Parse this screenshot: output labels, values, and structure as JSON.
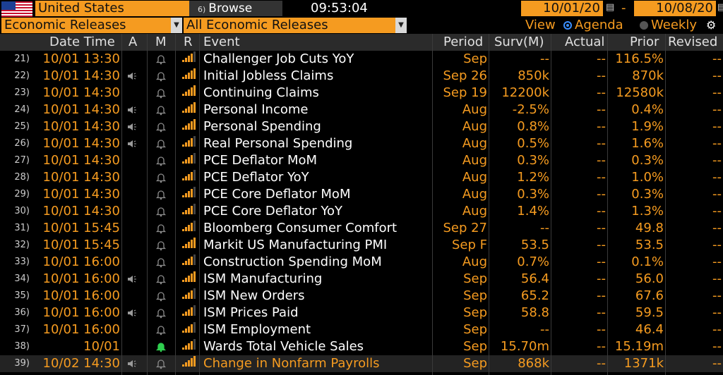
{
  "header": {
    "country": "United States",
    "browse_number": "6)",
    "browse_label": "Browse",
    "time": "09:53:04",
    "start_date": "10/01/20",
    "end_date": "10/08/20",
    "date_separator": "-"
  },
  "filters": {
    "category": "Economic Releases",
    "subcategory": "All Economic Releases",
    "view_label": "View",
    "view_options": [
      "Agenda",
      "Weekly"
    ],
    "selected_view": "Agenda"
  },
  "columns": {
    "date_time": "Date Time",
    "a": "A",
    "m": "M",
    "r": "R",
    "event": "Event",
    "period": "Period",
    "survey": "Surv(M)",
    "actual": "Actual",
    "prior": "Prior",
    "revised": "Revised"
  },
  "rows": [
    {
      "idx": "21)",
      "dt": "10/01 13:30",
      "audio": false,
      "bell": "gray",
      "bars": 4,
      "event": "Challenger Job Cuts YoY",
      "period": "Sep",
      "survey": "--",
      "actual": "--",
      "prior": "116.5%",
      "revised": "--"
    },
    {
      "idx": "22)",
      "dt": "10/01 14:30",
      "audio": true,
      "bell": "gray",
      "bars": 5,
      "event": "Initial Jobless Claims",
      "period": "Sep 26",
      "survey": "850k",
      "actual": "--",
      "prior": "870k",
      "revised": "--"
    },
    {
      "idx": "23)",
      "dt": "10/01 14:30",
      "audio": false,
      "bell": "gray",
      "bars": 5,
      "event": "Continuing Claims",
      "period": "Sep 19",
      "survey": "12200k",
      "actual": "--",
      "prior": "12580k",
      "revised": "--"
    },
    {
      "idx": "24)",
      "dt": "10/01 14:30",
      "audio": true,
      "bell": "gray",
      "bars": 5,
      "event": "Personal Income",
      "period": "Aug",
      "survey": "-2.5%",
      "actual": "--",
      "prior": "0.4%",
      "revised": "--"
    },
    {
      "idx": "25)",
      "dt": "10/01 14:30",
      "audio": true,
      "bell": "gray",
      "bars": 5,
      "event": "Personal Spending",
      "period": "Aug",
      "survey": "0.8%",
      "actual": "--",
      "prior": "1.9%",
      "revised": "--"
    },
    {
      "idx": "26)",
      "dt": "10/01 14:30",
      "audio": true,
      "bell": "gray",
      "bars": 4,
      "event": "Real Personal Spending",
      "period": "Aug",
      "survey": "0.5%",
      "actual": "--",
      "prior": "1.6%",
      "revised": "--"
    },
    {
      "idx": "27)",
      "dt": "10/01 14:30",
      "audio": false,
      "bell": "gray",
      "bars": 4,
      "event": "PCE Deflator MoM",
      "period": "Aug",
      "survey": "0.3%",
      "actual": "--",
      "prior": "0.3%",
      "revised": "--"
    },
    {
      "idx": "28)",
      "dt": "10/01 14:30",
      "audio": false,
      "bell": "gray",
      "bars": 4,
      "event": "PCE Deflator YoY",
      "period": "Aug",
      "survey": "1.2%",
      "actual": "--",
      "prior": "1.0%",
      "revised": "--"
    },
    {
      "idx": "29)",
      "dt": "10/01 14:30",
      "audio": false,
      "bell": "gray",
      "bars": 4,
      "event": "PCE Core Deflator MoM",
      "period": "Aug",
      "survey": "0.3%",
      "actual": "--",
      "prior": "0.3%",
      "revised": "--"
    },
    {
      "idx": "30)",
      "dt": "10/01 14:30",
      "audio": false,
      "bell": "gray",
      "bars": 4,
      "event": "PCE Core Deflator YoY",
      "period": "Aug",
      "survey": "1.4%",
      "actual": "--",
      "prior": "1.3%",
      "revised": "--"
    },
    {
      "idx": "31)",
      "dt": "10/01 15:45",
      "audio": false,
      "bell": "gray",
      "bars": 4,
      "event": "Bloomberg Consumer Comfort",
      "period": "Sep 27",
      "survey": "--",
      "actual": "--",
      "prior": "49.8",
      "revised": "--"
    },
    {
      "idx": "32)",
      "dt": "10/01 15:45",
      "audio": false,
      "bell": "gray",
      "bars": 5,
      "event": "Markit US Manufacturing PMI",
      "period": "Sep F",
      "survey": "53.5",
      "actual": "--",
      "prior": "53.5",
      "revised": "--"
    },
    {
      "idx": "33)",
      "dt": "10/01 16:00",
      "audio": false,
      "bell": "gray",
      "bars": 4,
      "event": "Construction Spending MoM",
      "period": "Aug",
      "survey": "0.7%",
      "actual": "--",
      "prior": "0.1%",
      "revised": "--"
    },
    {
      "idx": "34)",
      "dt": "10/01 16:00",
      "audio": true,
      "bell": "gray",
      "bars": 5,
      "event": "ISM Manufacturing",
      "period": "Sep",
      "survey": "56.4",
      "actual": "--",
      "prior": "56.0",
      "revised": "--"
    },
    {
      "idx": "35)",
      "dt": "10/01 16:00",
      "audio": false,
      "bell": "gray",
      "bars": 4,
      "event": "ISM New Orders",
      "period": "Sep",
      "survey": "65.2",
      "actual": "--",
      "prior": "67.6",
      "revised": "--"
    },
    {
      "idx": "36)",
      "dt": "10/01 16:00",
      "audio": true,
      "bell": "gray",
      "bars": 4,
      "event": "ISM Prices Paid",
      "period": "Sep",
      "survey": "58.8",
      "actual": "--",
      "prior": "59.5",
      "revised": "--"
    },
    {
      "idx": "37)",
      "dt": "10/01 16:00",
      "audio": false,
      "bell": "gray",
      "bars": 4,
      "event": "ISM Employment",
      "period": "Sep",
      "survey": "--",
      "actual": "--",
      "prior": "46.4",
      "revised": "--"
    },
    {
      "idx": "38)",
      "dt": "10/01",
      "audio": false,
      "bell": "green",
      "bars": 4,
      "event": "Wards Total Vehicle Sales",
      "period": "Sep",
      "survey": "15.70m",
      "actual": "--",
      "prior": "15.19m",
      "revised": "--"
    },
    {
      "idx": "39)",
      "dt": "10/02 14:30",
      "audio": true,
      "bell": "gray",
      "bars": 5,
      "event": "Change in Nonfarm Payrolls",
      "period": "Sep",
      "survey": "868k",
      "actual": "--",
      "prior": "1371k",
      "revised": "--",
      "highlight": true
    }
  ],
  "colors": {
    "accent": "#f59b20",
    "bell_active": "#2fcf4f",
    "bell_inactive": "#8a8a8a",
    "background": "#000000"
  },
  "icons": {
    "audio": "speaker-icon",
    "bell": "bell-icon",
    "relevance": "signal-bars-icon",
    "calendar": "calendar-icon",
    "settings": "settings-search-icon"
  }
}
